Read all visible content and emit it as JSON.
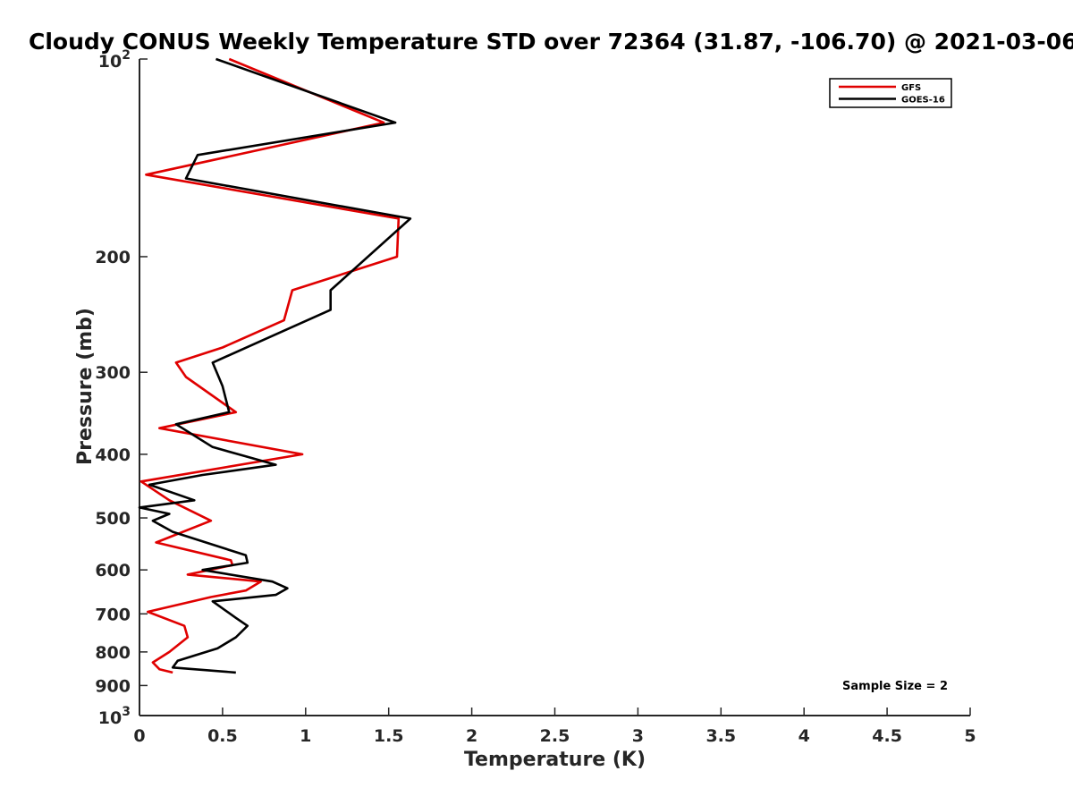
{
  "chart_data": {
    "type": "line",
    "title": "Cloudy CONUS Weekly Temperature STD over 72364 (31.87, -106.70) @ 2021-03-06",
    "xlabel": "Temperature (K)",
    "ylabel": "Pressure (mb)",
    "xlim": [
      0,
      5
    ],
    "ylim": [
      100,
      1000
    ],
    "y_scale": "log",
    "y_reversed": true,
    "grid": false,
    "legend_position": "top-right",
    "x_ticks": [
      "0",
      "0.5",
      "1",
      "1.5",
      "2",
      "2.5",
      "3",
      "3.5",
      "4",
      "4.5",
      "5"
    ],
    "y_ticks": [
      {
        "value": 100,
        "base": "10",
        "exp": "2"
      },
      {
        "value": 200,
        "label": "200"
      },
      {
        "value": 300,
        "label": "300"
      },
      {
        "value": 400,
        "label": "400"
      },
      {
        "value": 500,
        "label": "500"
      },
      {
        "value": 600,
        "label": "600"
      },
      {
        "value": 700,
        "label": "700"
      },
      {
        "value": 800,
        "label": "800"
      },
      {
        "value": 900,
        "label": "900"
      },
      {
        "value": 1000,
        "base": "10",
        "exp": "3"
      }
    ],
    "annotation": "Sample Size = 2",
    "series": [
      {
        "name": "GFS",
        "color": "#e00000",
        "points": [
          [
            0.54,
            100
          ],
          [
            1.47,
            125
          ],
          [
            0.04,
            150
          ],
          [
            1.56,
            175
          ],
          [
            1.55,
            200
          ],
          [
            0.92,
            225
          ],
          [
            0.87,
            250
          ],
          [
            0.5,
            275
          ],
          [
            0.22,
            290
          ],
          [
            0.28,
            305
          ],
          [
            0.58,
            345
          ],
          [
            0.12,
            365
          ],
          [
            0.98,
            400
          ],
          [
            0.01,
            440
          ],
          [
            0.18,
            470
          ],
          [
            0.43,
            505
          ],
          [
            0.1,
            545
          ],
          [
            0.55,
            580
          ],
          [
            0.56,
            590
          ],
          [
            0.29,
            610
          ],
          [
            0.73,
            625
          ],
          [
            0.64,
            645
          ],
          [
            0.43,
            660
          ],
          [
            0.05,
            695
          ],
          [
            0.27,
            730
          ],
          [
            0.29,
            760
          ],
          [
            0.18,
            800
          ],
          [
            0.08,
            830
          ],
          [
            0.12,
            850
          ],
          [
            0.2,
            860
          ]
        ]
      },
      {
        "name": "GOES-16",
        "color": "#000000",
        "points": [
          [
            0.46,
            100
          ],
          [
            1.54,
            125
          ],
          [
            0.35,
            140
          ],
          [
            0.28,
            152
          ],
          [
            1.63,
            175
          ],
          [
            1.15,
            225
          ],
          [
            1.15,
            241
          ],
          [
            0.44,
            290
          ],
          [
            0.5,
            315
          ],
          [
            0.54,
            345
          ],
          [
            0.22,
            360
          ],
          [
            0.44,
            390
          ],
          [
            0.82,
            415
          ],
          [
            0.38,
            430
          ],
          [
            0.06,
            445
          ],
          [
            0.33,
            470
          ],
          [
            0.0,
            482
          ],
          [
            0.18,
            493
          ],
          [
            0.08,
            505
          ],
          [
            0.2,
            525
          ],
          [
            0.64,
            570
          ],
          [
            0.65,
            585
          ],
          [
            0.38,
            600
          ],
          [
            0.8,
            625
          ],
          [
            0.89,
            640
          ],
          [
            0.82,
            655
          ],
          [
            0.44,
            670
          ],
          [
            0.58,
            710
          ],
          [
            0.65,
            730
          ],
          [
            0.58,
            760
          ],
          [
            0.47,
            790
          ],
          [
            0.23,
            825
          ],
          [
            0.2,
            845
          ],
          [
            0.58,
            860
          ]
        ]
      }
    ]
  }
}
